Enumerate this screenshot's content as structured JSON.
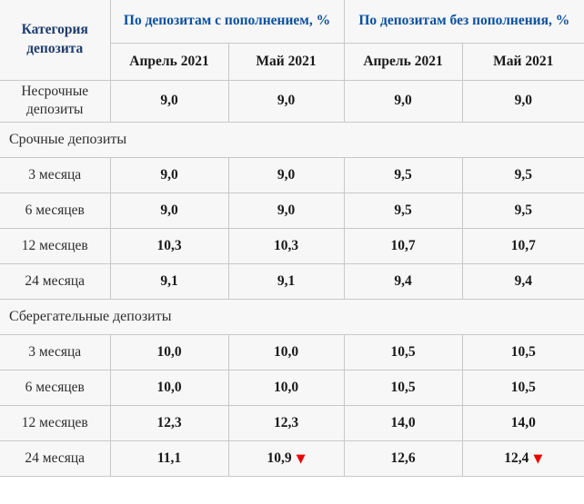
{
  "colors": {
    "cell_background": "#f7f7f7",
    "border": "#c8c8c8",
    "group_header_text": "#0a50a0",
    "category_header_text": "#1d3c6e",
    "value_text": "#1a1a1a",
    "label_text": "#2d2d2d",
    "decrease_arrow": "#ee0000"
  },
  "table": {
    "category_header": "Категория депозита",
    "group_headers": [
      "По депозитам с пополнением, %",
      "По депозитам без пополнения, %"
    ],
    "month_headers": [
      "Апрель 2021",
      "Май 2021",
      "Апрель 2021",
      "Май 2021"
    ],
    "decrease_marker": "▼",
    "rows": [
      {
        "type": "data",
        "label": "Несрочные депозиты",
        "values": [
          "9,0",
          "9,0",
          "9,0",
          "9,0"
        ]
      },
      {
        "type": "section",
        "label": "Срочные депозиты"
      },
      {
        "type": "data",
        "label": "3 месяца",
        "values": [
          "9,0",
          "9,0",
          "9,5",
          "9,5"
        ]
      },
      {
        "type": "data",
        "label": "6 месяцев",
        "values": [
          "9,0",
          "9,0",
          "9,5",
          "9,5"
        ]
      },
      {
        "type": "data",
        "label": "12 месяцев",
        "values": [
          "10,3",
          "10,3",
          "10,7",
          "10,7"
        ]
      },
      {
        "type": "data",
        "label": "24 месяца",
        "values": [
          "9,1",
          "9,1",
          "9,4",
          "9,4"
        ]
      },
      {
        "type": "section",
        "label": "Сберегательные депозиты"
      },
      {
        "type": "data",
        "label": "3 месяца",
        "values": [
          "10,0",
          "10,0",
          "10,5",
          "10,5"
        ]
      },
      {
        "type": "data",
        "label": "6 месяцев",
        "values": [
          "10,0",
          "10,0",
          "10,5",
          "10,5"
        ]
      },
      {
        "type": "data",
        "label": "12 месяцев",
        "values": [
          "12,3",
          "12,3",
          "14,0",
          "14,0"
        ]
      },
      {
        "type": "data",
        "label": "24 месяца",
        "values": [
          "11,1",
          "10,9",
          "12,6",
          "12,4"
        ],
        "decreased": [
          false,
          true,
          false,
          true
        ]
      }
    ]
  }
}
